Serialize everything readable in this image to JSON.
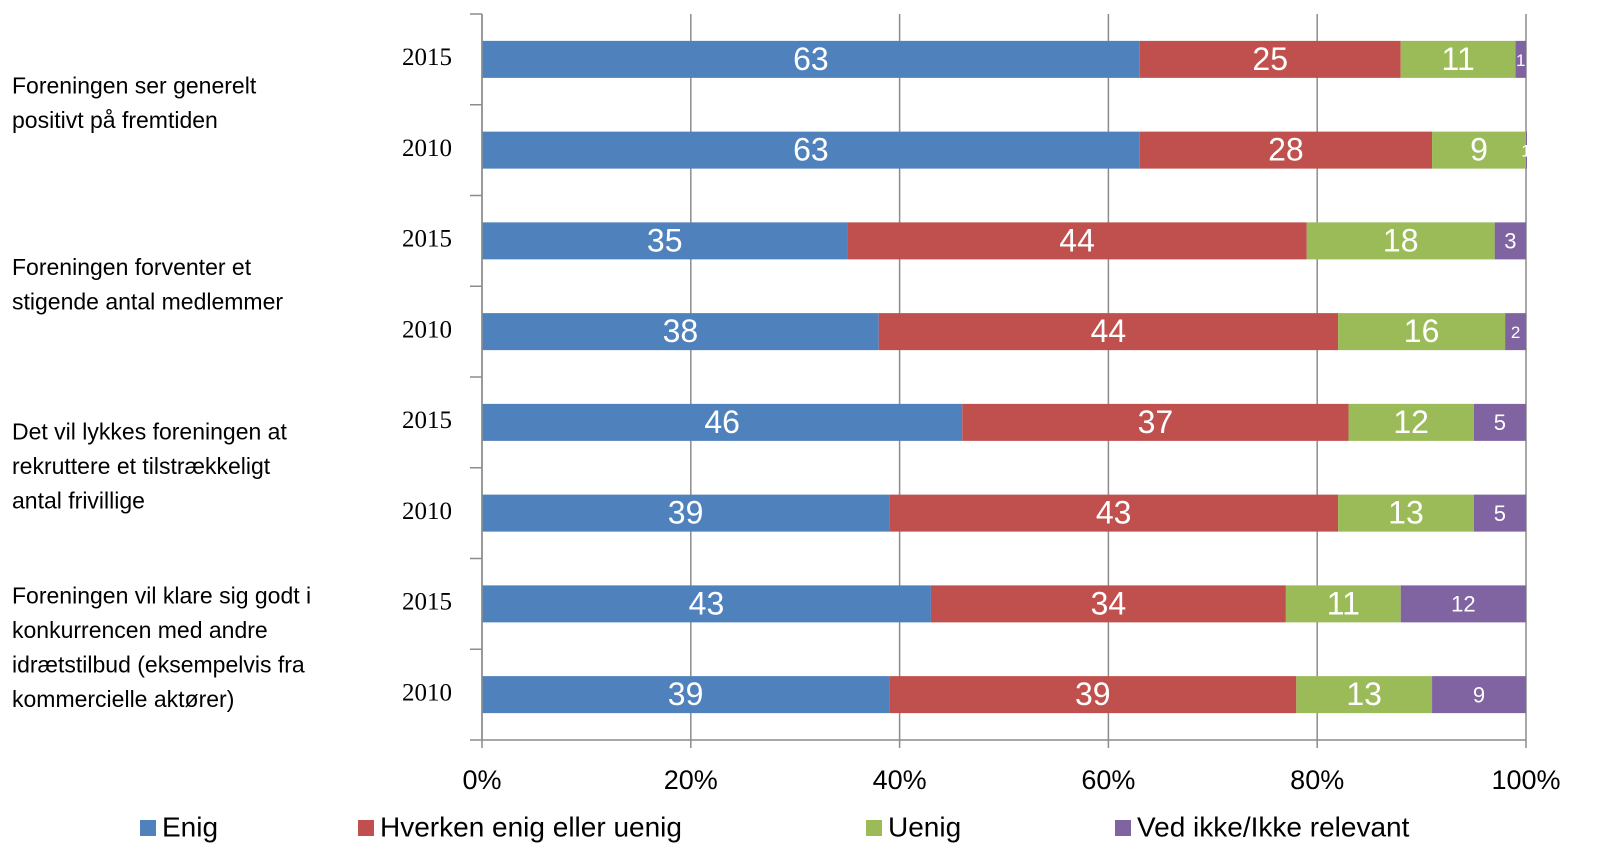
{
  "chart_data": {
    "type": "stacked-bar-horizontal",
    "categories": [
      "2015",
      "2010",
      "2015",
      "2010",
      "2015",
      "2010",
      "2015",
      "2010"
    ],
    "groups": [
      [
        "Foreningen ser generelt",
        "positivt på fremtiden"
      ],
      [
        "Foreningen forventer et",
        "stigende antal medlemmer"
      ],
      [
        "Det vil lykkes foreningen at",
        "rekruttere et tilstrækkeligt",
        "antal frivillige"
      ],
      [
        "Foreningen vil klare sig godt i",
        "konkurrencen med andre",
        "idrætstilbud (eksempelvis fra",
        "kommercielle aktører)"
      ]
    ],
    "series": [
      {
        "name": "Enig",
        "color": "#4f81bd",
        "values": [
          63,
          63,
          35,
          38,
          46,
          39,
          43,
          39
        ]
      },
      {
        "name": "Hverken enig eller uenig",
        "color": "#c0504d",
        "values": [
          25,
          28,
          44,
          44,
          37,
          43,
          34,
          39
        ]
      },
      {
        "name": "Uenig",
        "color": "#9bbb59",
        "values": [
          11,
          9,
          18,
          16,
          12,
          13,
          11,
          13
        ]
      },
      {
        "name": "Ved ikke/Ikke relevant",
        "color": "#8064a2",
        "values": [
          1,
          1,
          3,
          2,
          5,
          5,
          12,
          9
        ]
      }
    ],
    "xlim": [
      0,
      100
    ],
    "xticks": [
      {
        "value": 0,
        "label": "0%"
      },
      {
        "value": 20,
        "label": "20%"
      },
      {
        "value": 40,
        "label": "40%"
      },
      {
        "value": 60,
        "label": "60%"
      },
      {
        "value": 80,
        "label": "80%"
      },
      {
        "value": 100,
        "label": "100%"
      }
    ],
    "grid": true,
    "legend": "bottom"
  }
}
